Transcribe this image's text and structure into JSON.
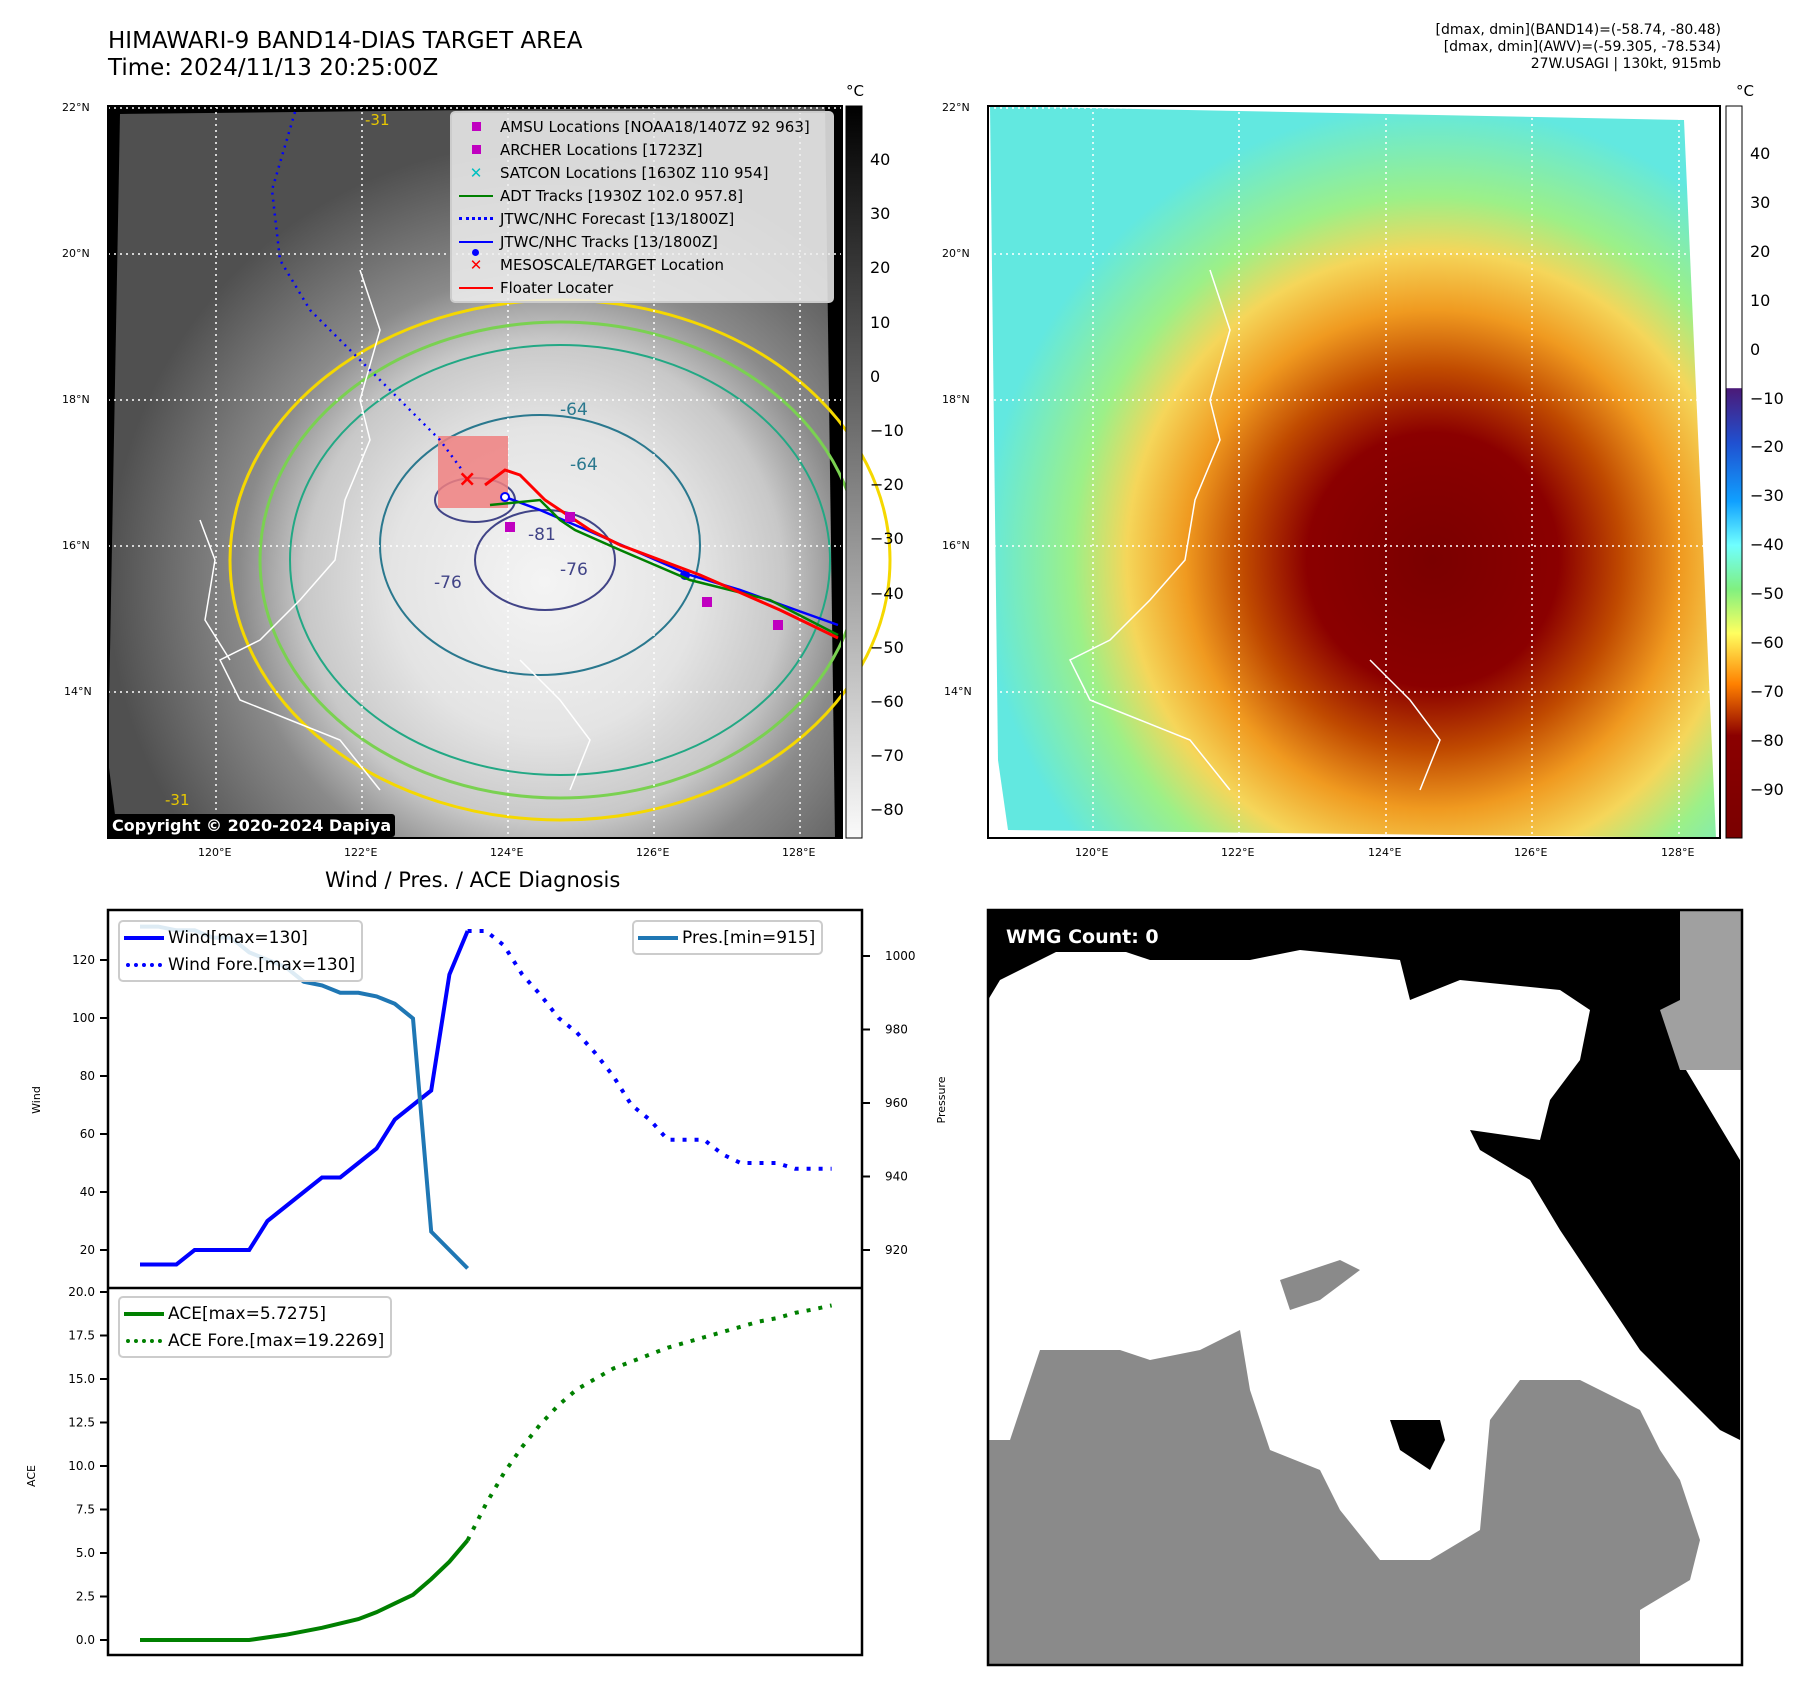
{
  "header": {
    "title_line1": "HIMAWARI-9 BAND14-DIAS TARGET AREA",
    "title_line2": "Time: 2024/11/13 20:25:00Z",
    "info_line1": "[dmax, dmin](BAND14)=(-58.74, -80.48)",
    "info_line2": "[dmax, dmin](AWV)=(-59.305, -78.534)",
    "info_line3": "27W.USAGI | 130kt, 915mb"
  },
  "map_left": {
    "lat_ticks": [
      "22°N",
      "20°N",
      "18°N",
      "16°N",
      "14°N"
    ],
    "lon_ticks": [
      "120°E",
      "122°E",
      "124°E",
      "126°E",
      "128°E"
    ],
    "colorbar_unit": "°C",
    "colorbar_ticks": [
      "40",
      "30",
      "20",
      "10",
      "0",
      "−10",
      "−20",
      "−30",
      "−40",
      "−50",
      "−60",
      "−70",
      "−80"
    ],
    "copyright": "Copyright © 2020-2024 Dapiya",
    "contour_labels": [
      "-64",
      "-64",
      "-76",
      "-76",
      "-81",
      "-31",
      "-31"
    ],
    "legend": [
      {
        "label": "AMSU Locations [NOAA18/1407Z 92 963]",
        "marker": "square",
        "color": "#c000c0"
      },
      {
        "label": "ARCHER Locations [1723Z]",
        "marker": "square",
        "color": "#c000c0"
      },
      {
        "label": "SATCON Locations [1630Z 110 954]",
        "marker": "x",
        "color": "#00c0c0"
      },
      {
        "label": "ADT Tracks [1930Z 102.0 957.8]",
        "marker": "line",
        "color": "#008000"
      },
      {
        "label": "JTWC/NHC Forecast [13/1800Z]",
        "marker": "dotted",
        "color": "#0000ff"
      },
      {
        "label": "JTWC/NHC Tracks [13/1800Z]",
        "marker": "line-dot",
        "color": "#0000ff"
      },
      {
        "label": "MESOSCALE/TARGET Location",
        "marker": "x",
        "color": "#ff0000"
      },
      {
        "label": "Floater Locater",
        "marker": "line",
        "color": "#ff0000"
      }
    ]
  },
  "map_right": {
    "lat_ticks": [
      "22°N",
      "20°N",
      "18°N",
      "16°N",
      "14°N"
    ],
    "lon_ticks": [
      "120°E",
      "122°E",
      "124°E",
      "126°E",
      "128°E"
    ],
    "colorbar_unit": "°C",
    "colorbar_ticks": [
      "40",
      "30",
      "20",
      "10",
      "0",
      "−10",
      "−20",
      "−30",
      "−40",
      "−50",
      "−60",
      "−70",
      "−80",
      "−90"
    ]
  },
  "wmg": {
    "label": "WMG Count: 0"
  },
  "chart_data": [
    {
      "type": "line",
      "title": "Wind / Pres. / ACE Diagnosis",
      "xlabel": "",
      "ylabel": "Wind",
      "ylabel_right": "Pressure",
      "ylim": [
        13,
        135
      ],
      "ylim_right": [
        910,
        1010
      ],
      "yticks": [
        "20",
        "40",
        "60",
        "80",
        "100",
        "120"
      ],
      "yticks_right": [
        "920",
        "940",
        "960",
        "980",
        "1000"
      ],
      "series": [
        {
          "name": "Wind[max=130]",
          "axis": "left",
          "style": "solid",
          "color": "#0000ff",
          "x": [
            0,
            2,
            3,
            4,
            5,
            6,
            7,
            8,
            9,
            10,
            11,
            12,
            13,
            14,
            15,
            16,
            17,
            18
          ],
          "values": [
            15,
            15,
            20,
            20,
            20,
            20,
            30,
            35,
            40,
            45,
            45,
            50,
            55,
            65,
            70,
            75,
            115,
            130
          ]
        },
        {
          "name": "Wind Fore.[max=130]",
          "axis": "left",
          "style": "dotted",
          "color": "#0000ff",
          "x": [
            18,
            19,
            20,
            21,
            22,
            23,
            24,
            25,
            26,
            27,
            28,
            29,
            30,
            31,
            32,
            33,
            34,
            35,
            36,
            37,
            38
          ],
          "values": [
            130,
            130,
            125,
            115,
            108,
            100,
            95,
            88,
            80,
            70,
            65,
            58,
            58,
            58,
            53,
            50,
            50,
            50,
            48,
            48,
            48
          ]
        },
        {
          "name": "Pres.[min=915]",
          "axis": "right",
          "style": "solid",
          "color": "#1f77b4",
          "x": [
            0,
            1,
            2,
            3,
            4,
            5,
            6,
            7,
            8,
            9,
            10,
            11,
            12,
            13,
            14,
            15,
            16,
            17,
            18
          ],
          "values": [
            1008,
            1008,
            1007,
            1007,
            1005,
            1005,
            1001,
            999,
            997,
            993,
            992,
            990,
            990,
            989,
            987,
            983,
            925,
            920,
            915
          ]
        }
      ],
      "legend_left": [
        "Wind[max=130]",
        "Wind Fore.[max=130]"
      ],
      "legend_right": [
        "Pres.[min=915]"
      ]
    },
    {
      "type": "line",
      "ylabel": "ACE",
      "ylim": [
        -0.8,
        20
      ],
      "yticks": [
        "0.0",
        "2.5",
        "5.0",
        "7.5",
        "10.0",
        "12.5",
        "15.0",
        "17.5",
        "20.0"
      ],
      "series": [
        {
          "name": "ACE[max=5.7275]",
          "style": "solid",
          "color": "#008000",
          "x": [
            0,
            2,
            4,
            6,
            8,
            10,
            12,
            13,
            14,
            15,
            16,
            17,
            18
          ],
          "values": [
            0,
            0,
            0,
            0,
            0.3,
            0.7,
            1.2,
            1.6,
            2.1,
            2.6,
            3.5,
            4.5,
            5.73
          ]
        },
        {
          "name": "ACE Fore.[max=19.2269]",
          "style": "dotted",
          "color": "#008000",
          "x": [
            18,
            19,
            20,
            21,
            22,
            23,
            24,
            25,
            26,
            27,
            28,
            29,
            30,
            31,
            32,
            33,
            34,
            35,
            36,
            37,
            38
          ],
          "values": [
            5.73,
            7.8,
            9.6,
            11.1,
            12.4,
            13.5,
            14.4,
            15.0,
            15.6,
            16.0,
            16.4,
            16.8,
            17.1,
            17.4,
            17.7,
            18.0,
            18.3,
            18.5,
            18.8,
            19.0,
            19.23
          ]
        }
      ],
      "legend": [
        "ACE[max=5.7275]",
        "ACE Fore.[max=19.2269]"
      ]
    }
  ]
}
